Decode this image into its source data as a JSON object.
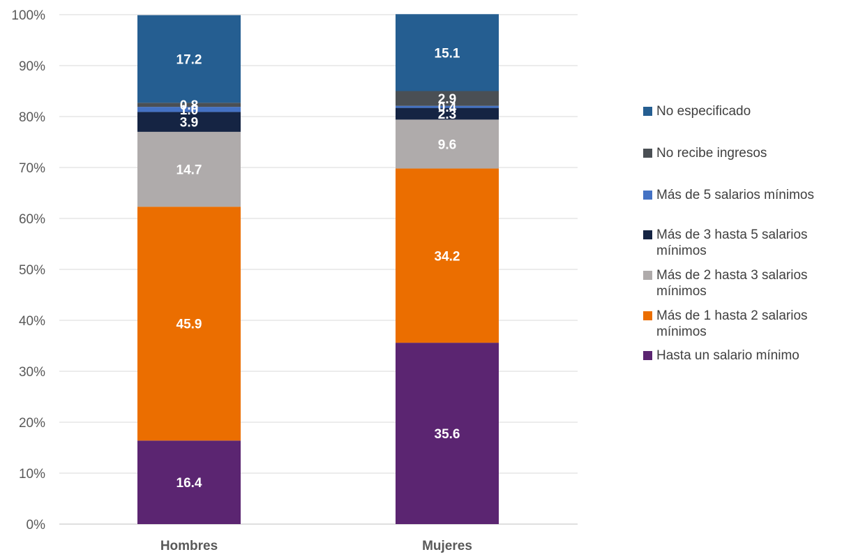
{
  "chart_data": {
    "type": "bar",
    "stacked": true,
    "categories": [
      "Hombres",
      "Mujeres"
    ],
    "ylim": [
      0,
      100
    ],
    "yticks": [
      "0%",
      "10%",
      "20%",
      "30%",
      "40%",
      "50%",
      "60%",
      "70%",
      "80%",
      "90%",
      "100%"
    ],
    "grid": true,
    "legend_position": "right",
    "series": [
      {
        "name": "Hasta un salario mínimo",
        "color": "#5b2571",
        "values": [
          16.4,
          35.6
        ]
      },
      {
        "name": "Más de 1 hasta 2 salarios mínimos",
        "color": "#eb6e00",
        "values": [
          45.9,
          34.2
        ]
      },
      {
        "name": "Más de 2 hasta 3 salarios mínimos",
        "color": "#afabab",
        "values": [
          14.7,
          9.6
        ]
      },
      {
        "name": "Más de 3 hasta 5 salarios mínimos",
        "color": "#152443",
        "values": [
          3.9,
          2.3
        ]
      },
      {
        "name": "Más de 5 salarios mínimos",
        "color": "#4472c4",
        "values": [
          1.0,
          0.4
        ]
      },
      {
        "name": "No recibe ingresos",
        "color": "#4a4f54",
        "values": [
          0.8,
          2.9
        ]
      },
      {
        "name": "No especificado",
        "color": "#255e91",
        "values": [
          17.2,
          15.1
        ]
      }
    ]
  }
}
